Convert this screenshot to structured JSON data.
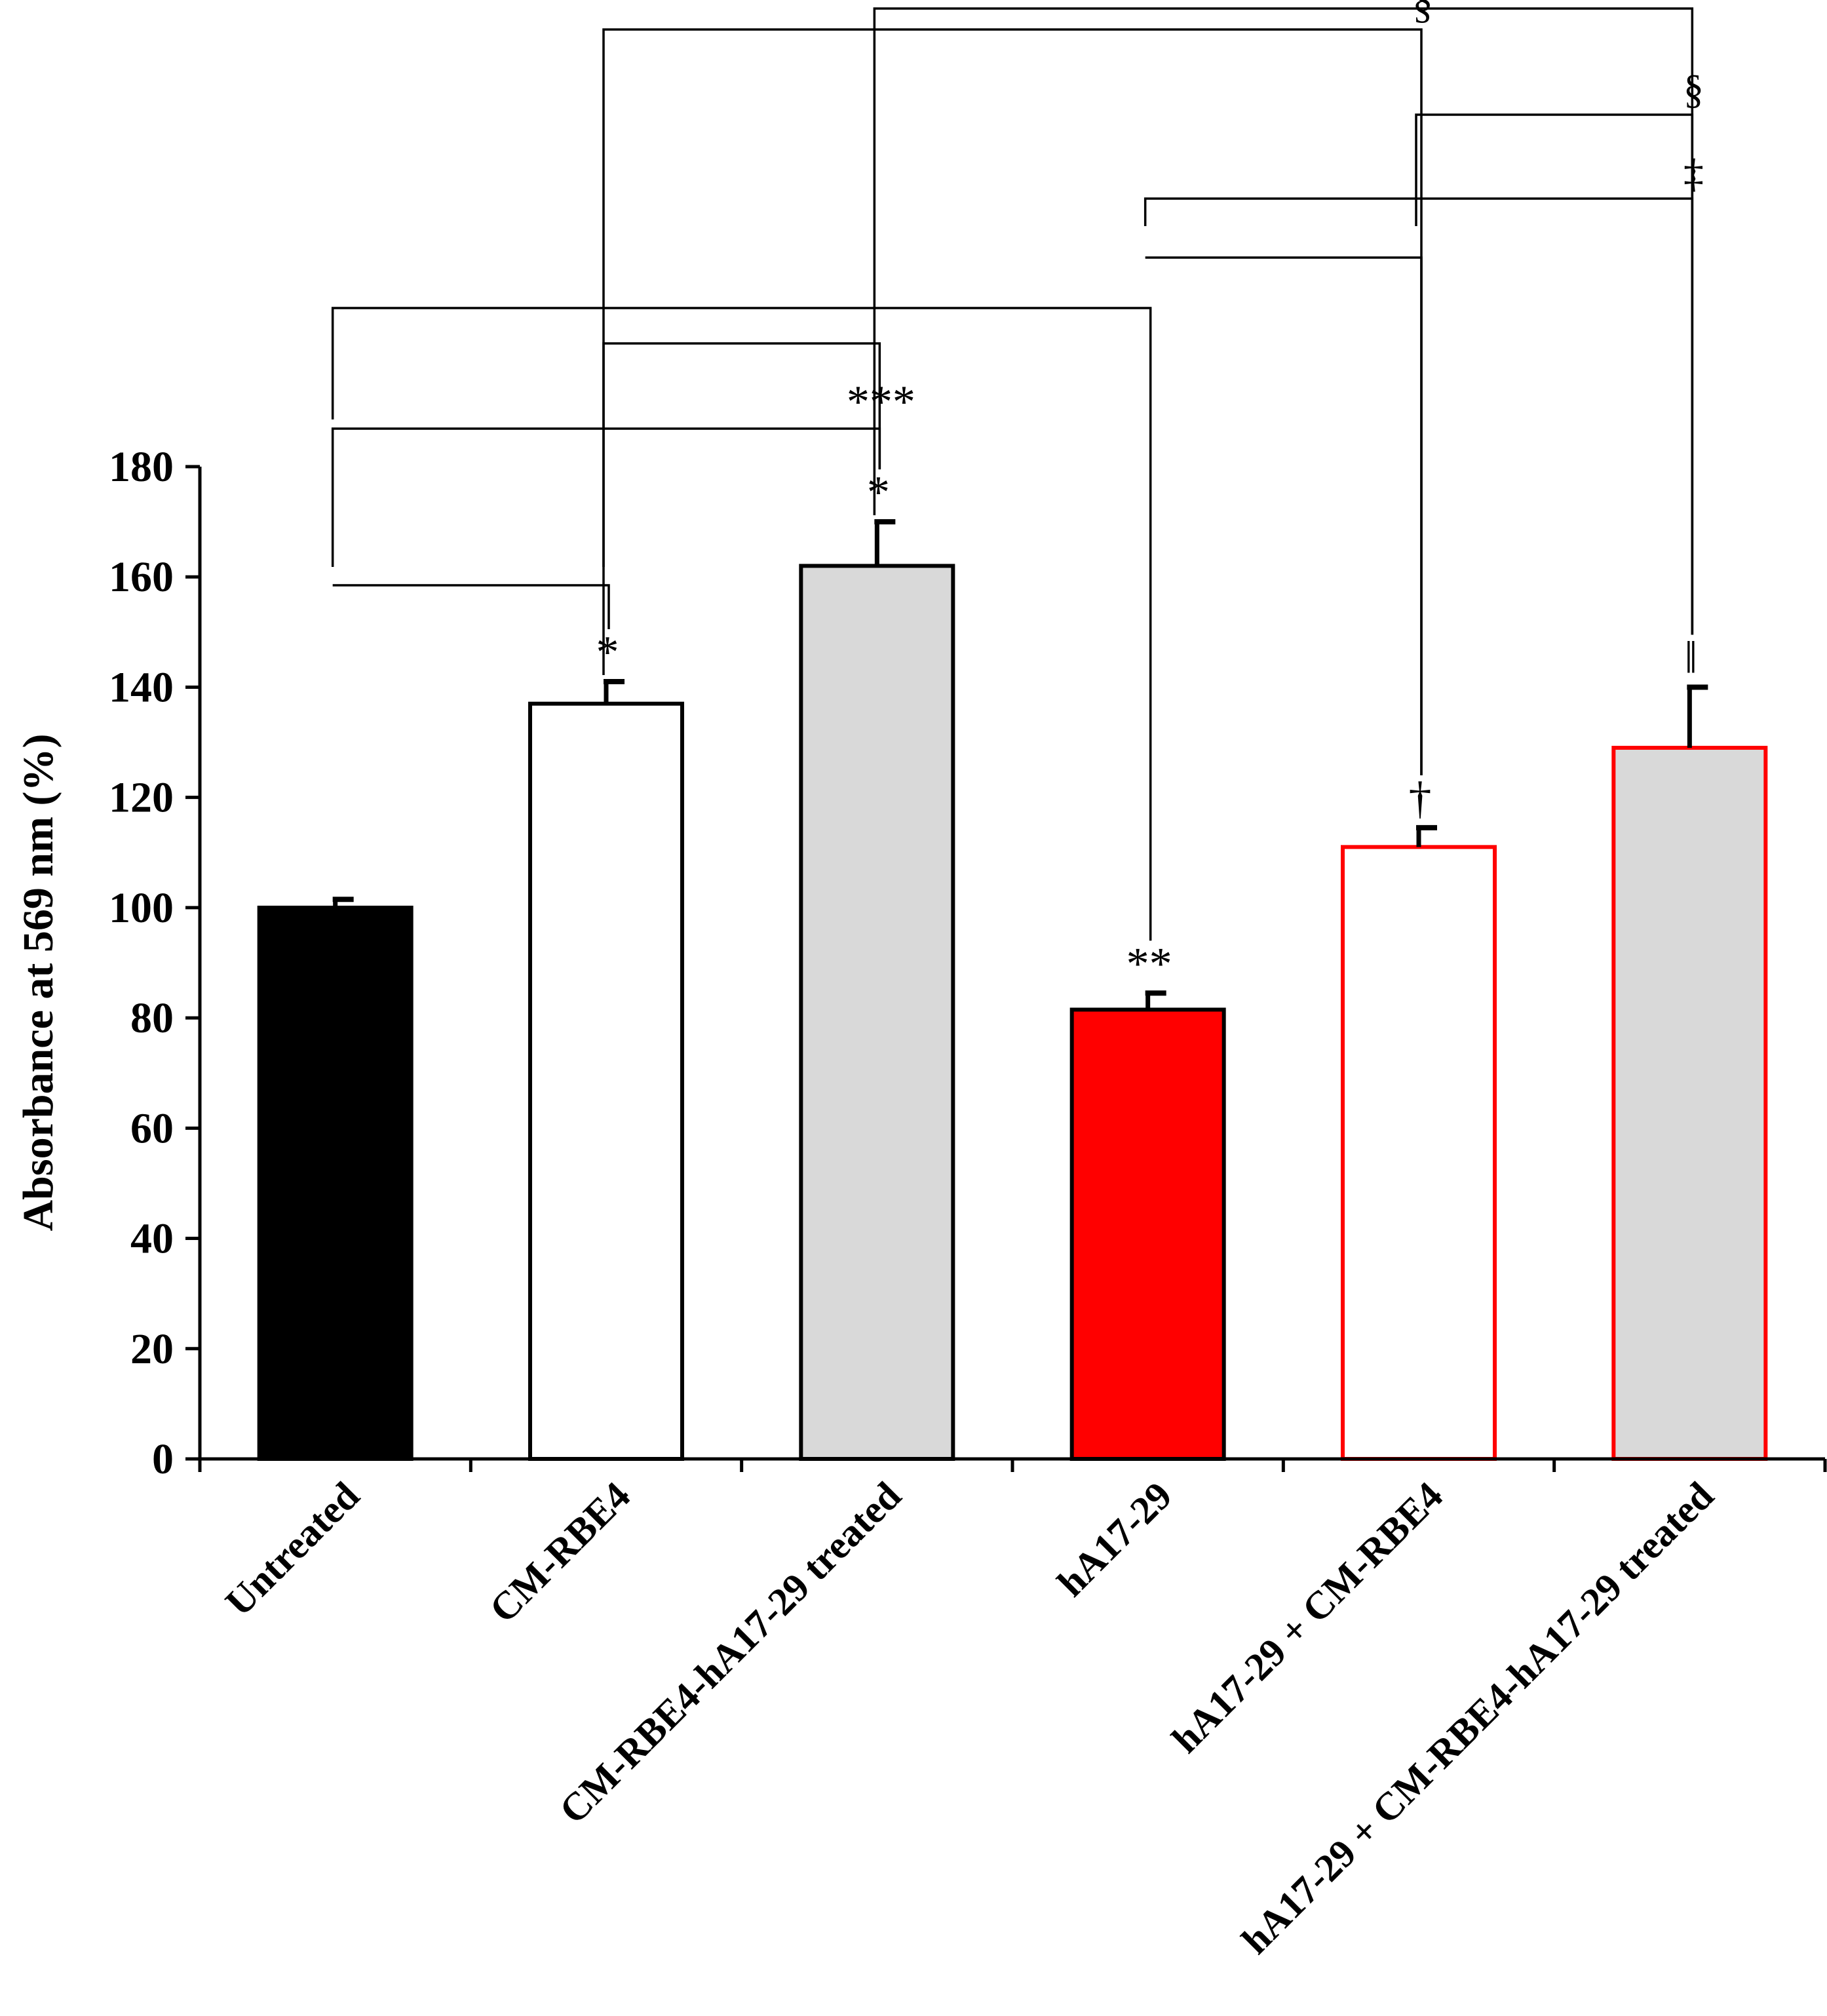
{
  "chart_data": {
    "type": "bar",
    "title": "",
    "xlabel": "",
    "ylabel": "Absorbance at 569 nm (%)",
    "ylim": [
      0,
      180
    ],
    "yticks": [
      0,
      20,
      40,
      60,
      80,
      100,
      120,
      140,
      160,
      180
    ],
    "grid": false,
    "categories": [
      "Untreated",
      "CM-RBE4",
      "CM-RBE4-hA17-29 treated",
      "hA17-29",
      "hA17-29  + CM-RBE4",
      "hA17-29 + CM-RBE4-hA17-29 treated"
    ],
    "values": [
      100,
      137,
      162,
      81.5,
      111,
      129
    ],
    "errors": [
      1.5,
      4,
      8,
      3,
      3.5,
      11
    ],
    "fill_colors": [
      "#000000",
      "#ffffff",
      "#d9d9d9",
      "#ff0000",
      "#ffffff",
      "#d9d9d9"
    ],
    "edge_colors": [
      "#000000",
      "#000000",
      "#000000",
      "#000000",
      "#ff0000",
      "#ff0000"
    ],
    "bar_annotations": [
      "",
      "*",
      "*",
      "**",
      "†",
      "‖"
    ],
    "comparisons": [
      {
        "from": 0,
        "to": 1,
        "label": ""
      },
      {
        "from": 0,
        "to": 2,
        "label": "***"
      },
      {
        "from": 1,
        "to": 2,
        "label": ""
      },
      {
        "from": 0,
        "to": 3,
        "label": ""
      },
      {
        "from": 3,
        "to": 4,
        "label": ""
      },
      {
        "from": 3,
        "to": 5,
        "label": "‡"
      },
      {
        "from": 4,
        "to": 5,
        "label": "§"
      },
      {
        "from": 1,
        "to": 4,
        "label": "§"
      },
      {
        "from": 2,
        "to": 5,
        "label": ""
      }
    ]
  },
  "colors": {
    "axis": "#000000",
    "red": "#ff0000",
    "grey": "#d9d9d9"
  }
}
